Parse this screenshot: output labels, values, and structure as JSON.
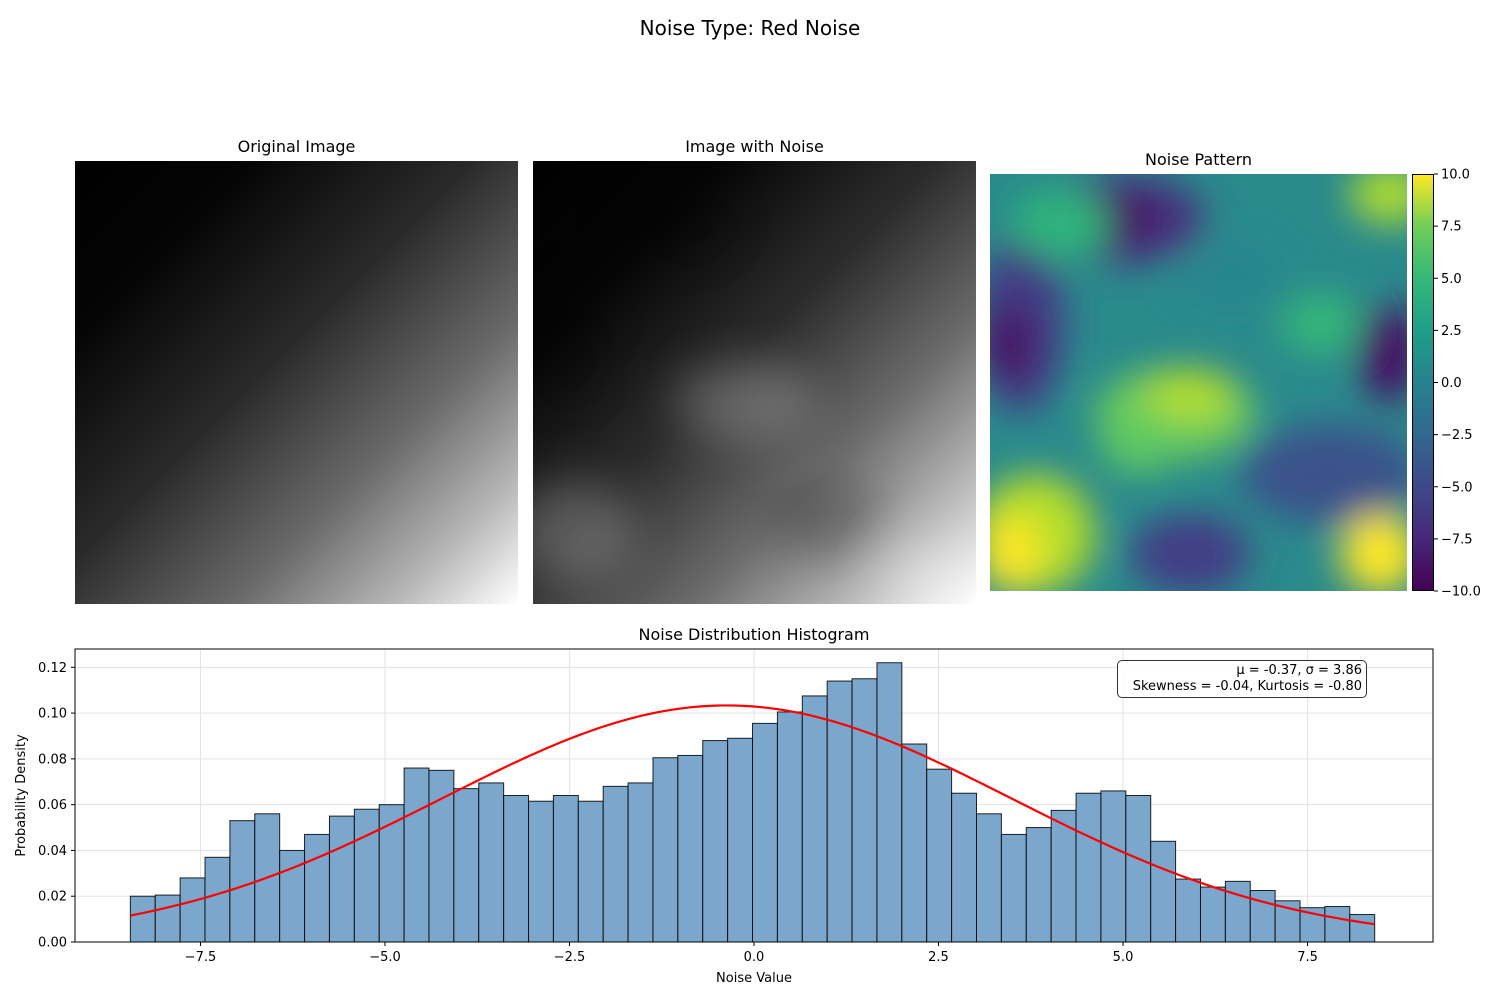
{
  "suptitle": "Noise Type: Red Noise",
  "panels": {
    "original_title": "Original Image",
    "noisy_title": "Image with Noise",
    "pattern_title": "Noise Pattern"
  },
  "colorbar": {
    "ticks": [
      "10.0",
      "7.5",
      "5.0",
      "2.5",
      "0.0",
      "−2.5",
      "−5.0",
      "−7.5",
      "−10.0"
    ],
    "values": [
      10,
      7.5,
      5,
      2.5,
      0,
      -2.5,
      -5,
      -7.5,
      -10
    ],
    "colormap": "viridis"
  },
  "stats": {
    "line1": "μ = -0.37, σ = 3.86",
    "line2": "Skewness = -0.04, Kurtosis = -0.80"
  },
  "colors": {
    "bar_fill": "#7ba7cc",
    "bar_edge": "#000000",
    "fit_line": "#ff0000"
  },
  "chart_data": {
    "type": "bar",
    "title": "Noise Distribution Histogram",
    "xlabel": "Noise Value",
    "ylabel": "Probability Density",
    "xlim": [
      -9.2,
      9.2
    ],
    "ylim": [
      0,
      0.128
    ],
    "xticks": [
      -7.5,
      -5.0,
      -2.5,
      0.0,
      2.5,
      5.0,
      7.5
    ],
    "xtick_labels": [
      "−7.5",
      "−5.0",
      "−2.5",
      "0.0",
      "2.5",
      "5.0",
      "7.5"
    ],
    "yticks": [
      0,
      0.02,
      0.04,
      0.06,
      0.08,
      0.1,
      0.12
    ],
    "ytick_labels": [
      "0.00",
      "0.02",
      "0.04",
      "0.06",
      "0.08",
      "0.10",
      "0.12"
    ],
    "grid": true,
    "bin_start": -8.45,
    "bin_width": 0.3372,
    "values": [
      0.02,
      0.0205,
      0.028,
      0.037,
      0.053,
      0.056,
      0.04,
      0.047,
      0.055,
      0.058,
      0.06,
      0.076,
      0.075,
      0.067,
      0.0695,
      0.064,
      0.0615,
      0.064,
      0.0615,
      0.068,
      0.0695,
      0.0805,
      0.0815,
      0.088,
      0.089,
      0.0955,
      0.1005,
      0.1075,
      0.114,
      0.115,
      0.122,
      0.0865,
      0.0755,
      0.065,
      0.056,
      0.047,
      0.05,
      0.0575,
      0.065,
      0.066,
      0.064,
      0.044,
      0.0275,
      0.024,
      0.0265,
      0.0225,
      0.018,
      0.015,
      0.0155,
      0.012
    ],
    "fit": {
      "type": "normal",
      "mu": -0.37,
      "sigma": 3.86,
      "x_range": [
        -8.45,
        8.41
      ]
    }
  }
}
